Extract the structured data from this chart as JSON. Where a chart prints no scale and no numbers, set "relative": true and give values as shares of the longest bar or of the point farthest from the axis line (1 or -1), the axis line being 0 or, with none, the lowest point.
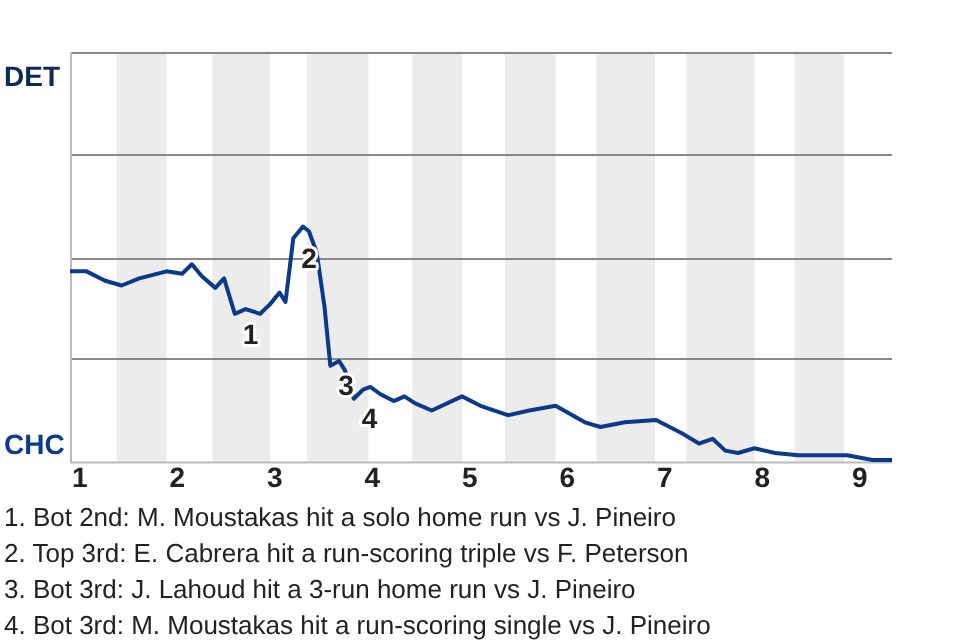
{
  "chart_data": {
    "type": "line",
    "relative": true,
    "x": [
      0.9,
      1.07,
      1.26,
      1.43,
      1.61,
      1.89,
      2.05,
      2.15,
      2.25,
      2.39,
      2.48,
      2.59,
      2.7,
      2.85,
      2.95,
      3.05,
      3.11,
      3.19,
      3.29,
      3.35,
      3.43,
      3.51,
      3.57,
      3.66,
      3.72,
      3.81,
      3.91,
      3.98,
      4.08,
      4.22,
      4.33,
      4.44,
      4.61,
      4.92,
      5.11,
      5.39,
      5.61,
      5.88,
      6.18,
      6.34,
      6.59,
      6.91,
      7.05,
      7.19,
      7.35,
      7.49,
      7.62,
      7.75,
      7.92,
      8.13,
      8.37,
      8.87,
      9.13,
      9.33
    ],
    "series": [
      {
        "color": "#0b3a8c",
        "values": [
          0.81,
          0.81,
          0.77,
          0.75,
          0.78,
          0.81,
          0.8,
          0.84,
          0.79,
          0.74,
          0.78,
          0.63,
          0.65,
          0.63,
          0.67,
          0.72,
          0.68,
          0.95,
          1,
          0.98,
          0.89,
          0.66,
          0.41,
          0.43,
          0.39,
          0.27,
          0.31,
          0.32,
          0.29,
          0.26,
          0.28,
          0.25,
          0.22,
          0.28,
          0.24,
          0.2,
          0.22,
          0.24,
          0.17,
          0.15,
          0.17,
          0.18,
          0.15,
          0.12,
          0.08,
          0.1,
          0.05,
          0.04,
          0.06,
          0.04,
          0.03,
          0.03,
          0.01,
          0.01
        ]
      }
    ],
    "xlim": [
      0.9,
      9.33
    ],
    "xticks": [
      1,
      2,
      3,
      4,
      5,
      6,
      7,
      8,
      9
    ],
    "grid": false,
    "legend": false,
    "marker": "none",
    "line_style": "solid",
    "ref_lines": [
      {
        "axis": "y",
        "value": 0.44,
        "color": "#888888"
      },
      {
        "axis": "y",
        "value": 0.87,
        "color": "#888888"
      },
      {
        "axis": "y",
        "value": 1.31,
        "color": "#888888"
      },
      {
        "axis": "y",
        "value": 1.74,
        "label": "DET",
        "color": "#888888"
      }
    ],
    "bands": [
      {
        "axis": "x",
        "from": 1.38,
        "to": 1.89,
        "color": "#ececec"
      },
      {
        "axis": "x",
        "from": 2.36,
        "to": 2.95,
        "color": "#ececec"
      },
      {
        "axis": "x",
        "from": 3.33,
        "to": 3.96,
        "color": "#ececec"
      },
      {
        "axis": "x",
        "from": 4.41,
        "to": 4.92,
        "color": "#ececec"
      },
      {
        "axis": "x",
        "from": 5.36,
        "to": 5.88,
        "color": "#ececec"
      },
      {
        "axis": "x",
        "from": 6.3,
        "to": 6.9,
        "color": "#ececec"
      },
      {
        "axis": "x",
        "from": 7.22,
        "to": 7.92,
        "color": "#ececec"
      },
      {
        "axis": "x",
        "from": 8.33,
        "to": 8.84,
        "color": "#ececec"
      }
    ],
    "annotations": [
      {
        "text": "1",
        "x": 2.59,
        "y": 0.63
      },
      {
        "text": "2",
        "x": 3.19,
        "y": 0.95
      },
      {
        "text": "3",
        "x": 3.57,
        "y": 0.41
      },
      {
        "text": "4",
        "x": 3.81,
        "y": 0.27
      },
      "CHC",
      "1. Bot 2nd: M. Moustakas hit a solo home run vs J. Pineiro",
      "2. Top 3rd: E. Cabrera hit a run-scoring triple vs F. Peterson",
      "3. Bot 3rd: J. Lahoud hit a 3-run home run vs J. Pineiro",
      "4. Bot 3rd: M. Moustakas hit a run-scoring single vs J. Pineiro"
    ]
  }
}
